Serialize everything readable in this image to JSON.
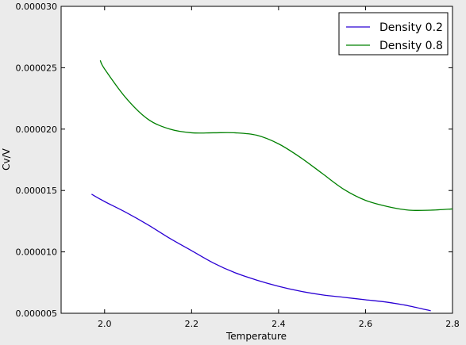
{
  "chart_data": {
    "type": "line",
    "title": "",
    "xlabel": "Temperature",
    "ylabel": "Cv/V",
    "xlim": [
      1.9,
      2.8
    ],
    "ylim": [
      5e-06,
      3e-05
    ],
    "xticks": [
      2.0,
      2.2,
      2.4,
      2.6,
      2.8
    ],
    "xtick_labels": [
      "2.0",
      "2.2",
      "2.4",
      "2.6",
      "2.8"
    ],
    "yticks": [
      5e-06,
      1e-05,
      1.5e-05,
      2e-05,
      2.5e-05,
      3e-05
    ],
    "ytick_labels": [
      "0.000005",
      "0.000010",
      "0.000015",
      "0.000020",
      "0.000025",
      "0.000030"
    ],
    "grid": false,
    "legend_position": "top-right",
    "series": [
      {
        "name": "Density 0.2",
        "color": "#2a00d4",
        "x": [
          1.97,
          2.0,
          2.05,
          2.1,
          2.15,
          2.2,
          2.25,
          2.3,
          2.35,
          2.4,
          2.45,
          2.5,
          2.55,
          2.6,
          2.65,
          2.7,
          2.75
        ],
        "y": [
          1.47e-05,
          1.41e-05,
          1.32e-05,
          1.22e-05,
          1.11e-05,
          1.01e-05,
          9.1e-06,
          8.3e-06,
          7.7e-06,
          7.2e-06,
          6.8e-06,
          6.5e-06,
          6.3e-06,
          6.1e-06,
          5.9e-06,
          5.6e-06,
          5.2e-06
        ]
      },
      {
        "name": "Density 0.8",
        "color": "#008000",
        "x": [
          1.99,
          2.0,
          2.05,
          2.1,
          2.15,
          2.2,
          2.25,
          2.3,
          2.35,
          2.4,
          2.45,
          2.5,
          2.55,
          2.6,
          2.65,
          2.7,
          2.75,
          2.8
        ],
        "y": [
          2.56e-05,
          2.49e-05,
          2.25e-05,
          2.08e-05,
          2e-05,
          1.97e-05,
          1.97e-05,
          1.97e-05,
          1.95e-05,
          1.88e-05,
          1.77e-05,
          1.64e-05,
          1.51e-05,
          1.42e-05,
          1.37e-05,
          1.34e-05,
          1.34e-05,
          1.35e-05
        ]
      }
    ]
  }
}
